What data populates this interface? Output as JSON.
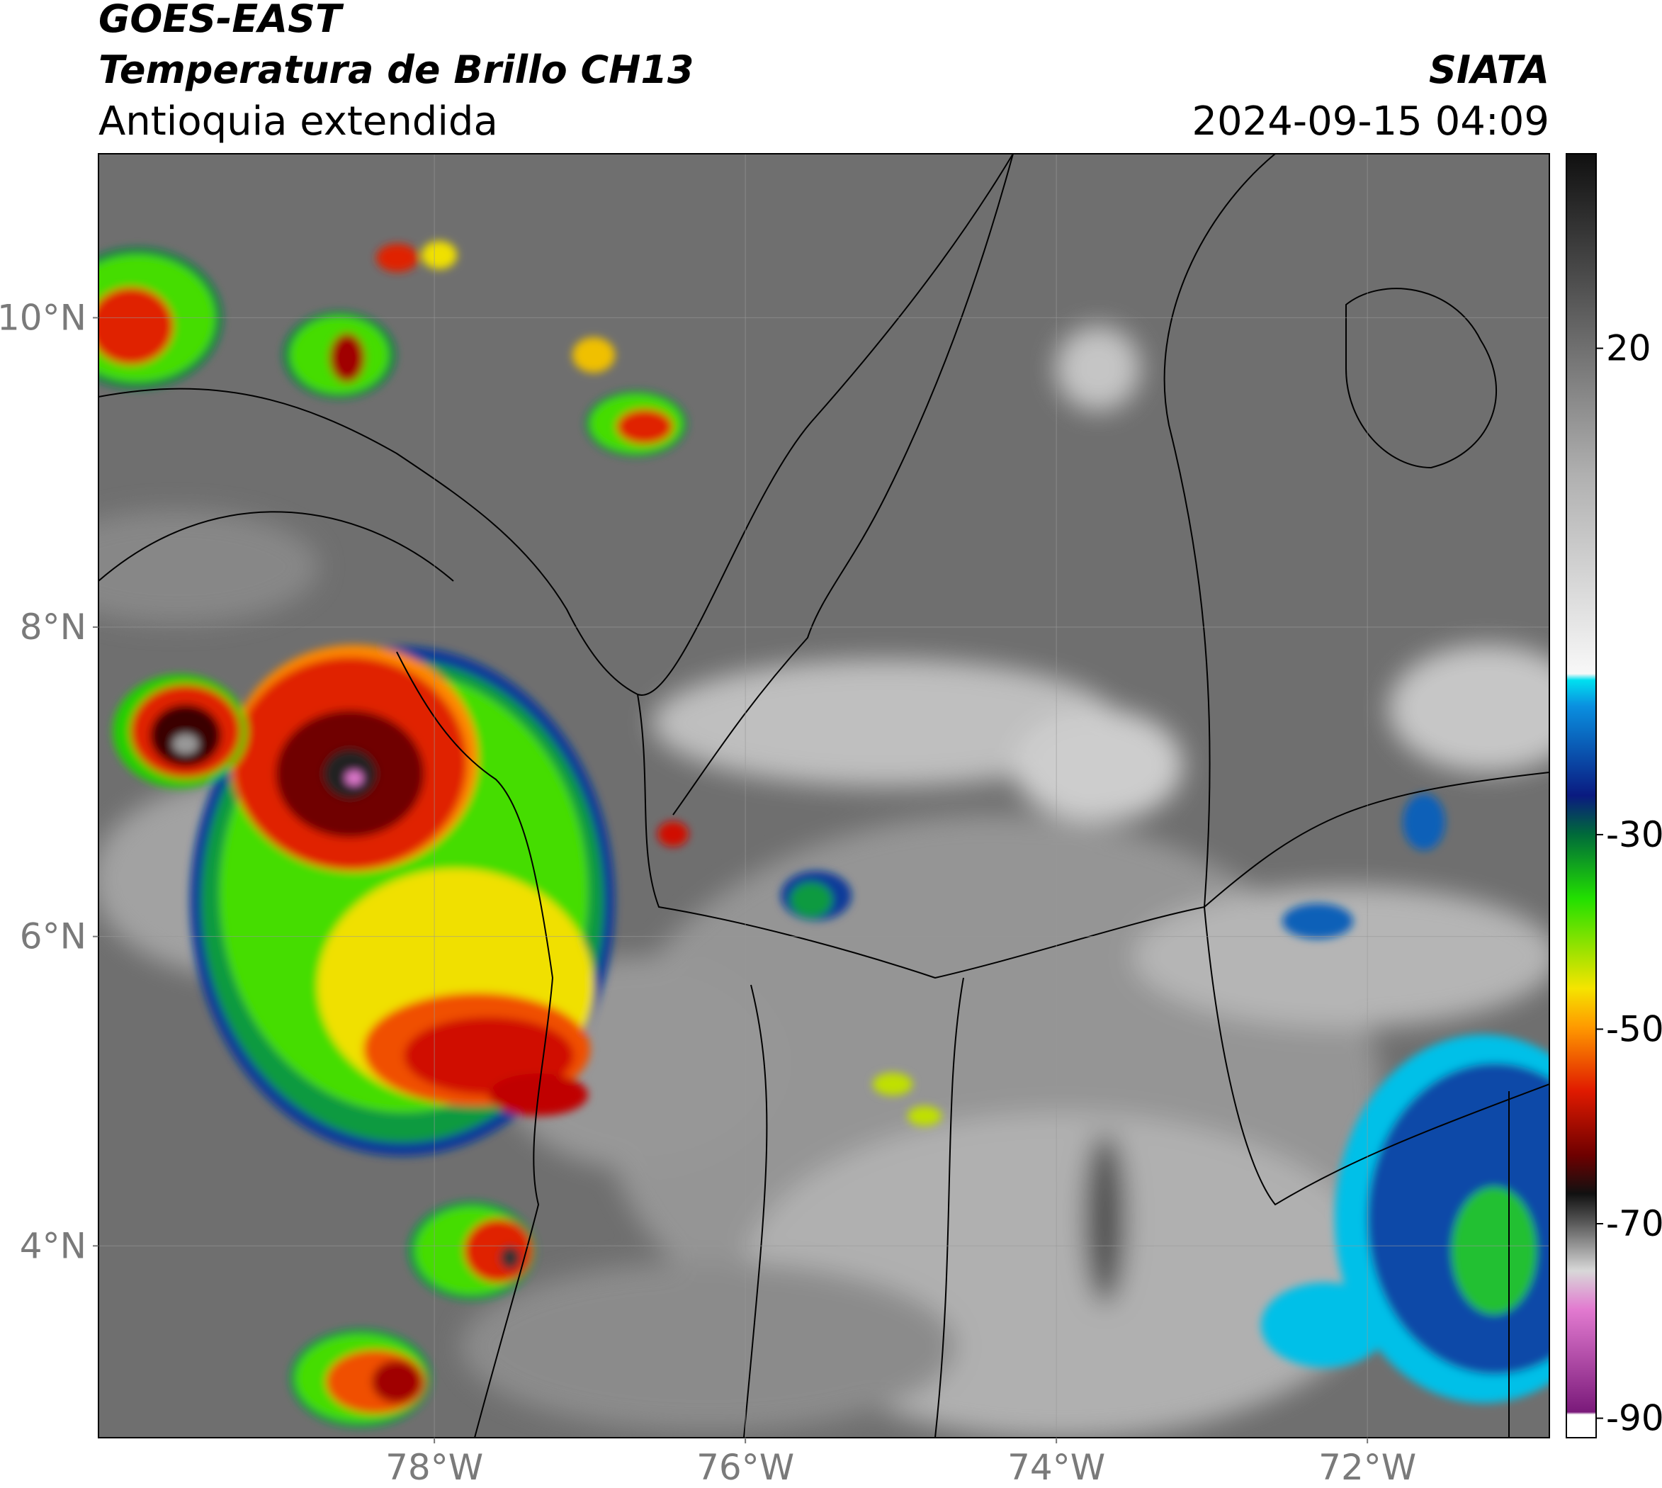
{
  "header": {
    "title": "GOES-EAST",
    "subtitle": "Temperatura de Brillo CH13",
    "region": "Antioquia extendida",
    "source": "SIATA",
    "timestamp": "2024-09-15 04:09"
  },
  "map": {
    "xlim": [
      -80.16,
      -70.83
    ],
    "ylim": [
      2.76,
      11.06
    ],
    "xticks": [
      {
        "value": -78,
        "label": "78°W"
      },
      {
        "value": -76,
        "label": "76°W"
      },
      {
        "value": -74,
        "label": "74°W"
      },
      {
        "value": -72,
        "label": "72°W"
      }
    ],
    "yticks": [
      {
        "value": 10,
        "label": "10°N"
      },
      {
        "value": 8,
        "label": "8°N"
      },
      {
        "value": 6,
        "label": "6°N"
      },
      {
        "value": 4,
        "label": "4°N"
      }
    ],
    "grid": true
  },
  "colorbar": {
    "lim": [
      -92,
      40
    ],
    "ticks": [
      20,
      -30,
      -50,
      -70,
      -90
    ]
  }
}
